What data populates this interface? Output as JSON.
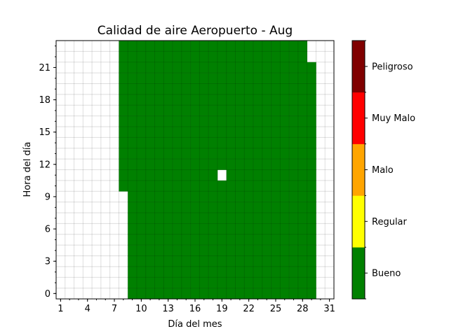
{
  "chart_data": {
    "type": "heatmap",
    "title": "Calidad de aire Aeropuerto - Aug",
    "xlabel": "Día del mes",
    "ylabel": "Hora del día",
    "x_range": [
      1,
      31
    ],
    "y_range": [
      0,
      23
    ],
    "x_ticks": [
      1,
      4,
      7,
      10,
      13,
      16,
      19,
      22,
      25,
      28,
      31
    ],
    "y_ticks": [
      0,
      3,
      6,
      9,
      12,
      15,
      18,
      21
    ],
    "grid": true,
    "categories": [
      "Bueno",
      "Regular",
      "Malo",
      "Muy Malo",
      "Peligroso"
    ],
    "category_colors": [
      "#008000",
      "#ffff00",
      "#ffa500",
      "#ff0000",
      "#800000"
    ],
    "cells_note": "Values listed as ranges of hours per day with category 'Bueno'; days not listed have no data.",
    "filled_ranges": [
      {
        "day": 8,
        "from_hour": 10,
        "to_hour": 23,
        "category": "Bueno"
      },
      {
        "day": 9,
        "from_hour": 0,
        "to_hour": 23,
        "category": "Bueno"
      },
      {
        "day": 10,
        "from_hour": 0,
        "to_hour": 23,
        "category": "Bueno"
      },
      {
        "day": 11,
        "from_hour": 0,
        "to_hour": 23,
        "category": "Bueno"
      },
      {
        "day": 12,
        "from_hour": 0,
        "to_hour": 23,
        "category": "Bueno"
      },
      {
        "day": 13,
        "from_hour": 0,
        "to_hour": 23,
        "category": "Bueno"
      },
      {
        "day": 14,
        "from_hour": 0,
        "to_hour": 23,
        "category": "Bueno"
      },
      {
        "day": 15,
        "from_hour": 0,
        "to_hour": 23,
        "category": "Bueno"
      },
      {
        "day": 16,
        "from_hour": 0,
        "to_hour": 23,
        "category": "Bueno"
      },
      {
        "day": 17,
        "from_hour": 0,
        "to_hour": 23,
        "category": "Bueno"
      },
      {
        "day": 18,
        "from_hour": 0,
        "to_hour": 23,
        "category": "Bueno"
      },
      {
        "day": 19,
        "from_hour": 0,
        "to_hour": 10,
        "category": "Bueno"
      },
      {
        "day": 19,
        "from_hour": 12,
        "to_hour": 23,
        "category": "Bueno"
      },
      {
        "day": 20,
        "from_hour": 0,
        "to_hour": 23,
        "category": "Bueno"
      },
      {
        "day": 21,
        "from_hour": 0,
        "to_hour": 23,
        "category": "Bueno"
      },
      {
        "day": 22,
        "from_hour": 0,
        "to_hour": 23,
        "category": "Bueno"
      },
      {
        "day": 23,
        "from_hour": 0,
        "to_hour": 23,
        "category": "Bueno"
      },
      {
        "day": 24,
        "from_hour": 0,
        "to_hour": 23,
        "category": "Bueno"
      },
      {
        "day": 25,
        "from_hour": 0,
        "to_hour": 23,
        "category": "Bueno"
      },
      {
        "day": 26,
        "from_hour": 0,
        "to_hour": 23,
        "category": "Bueno"
      },
      {
        "day": 27,
        "from_hour": 0,
        "to_hour": 23,
        "category": "Bueno"
      },
      {
        "day": 28,
        "from_hour": 0,
        "to_hour": 23,
        "category": "Bueno"
      },
      {
        "day": 29,
        "from_hour": 0,
        "to_hour": 21,
        "category": "Bueno"
      }
    ]
  }
}
